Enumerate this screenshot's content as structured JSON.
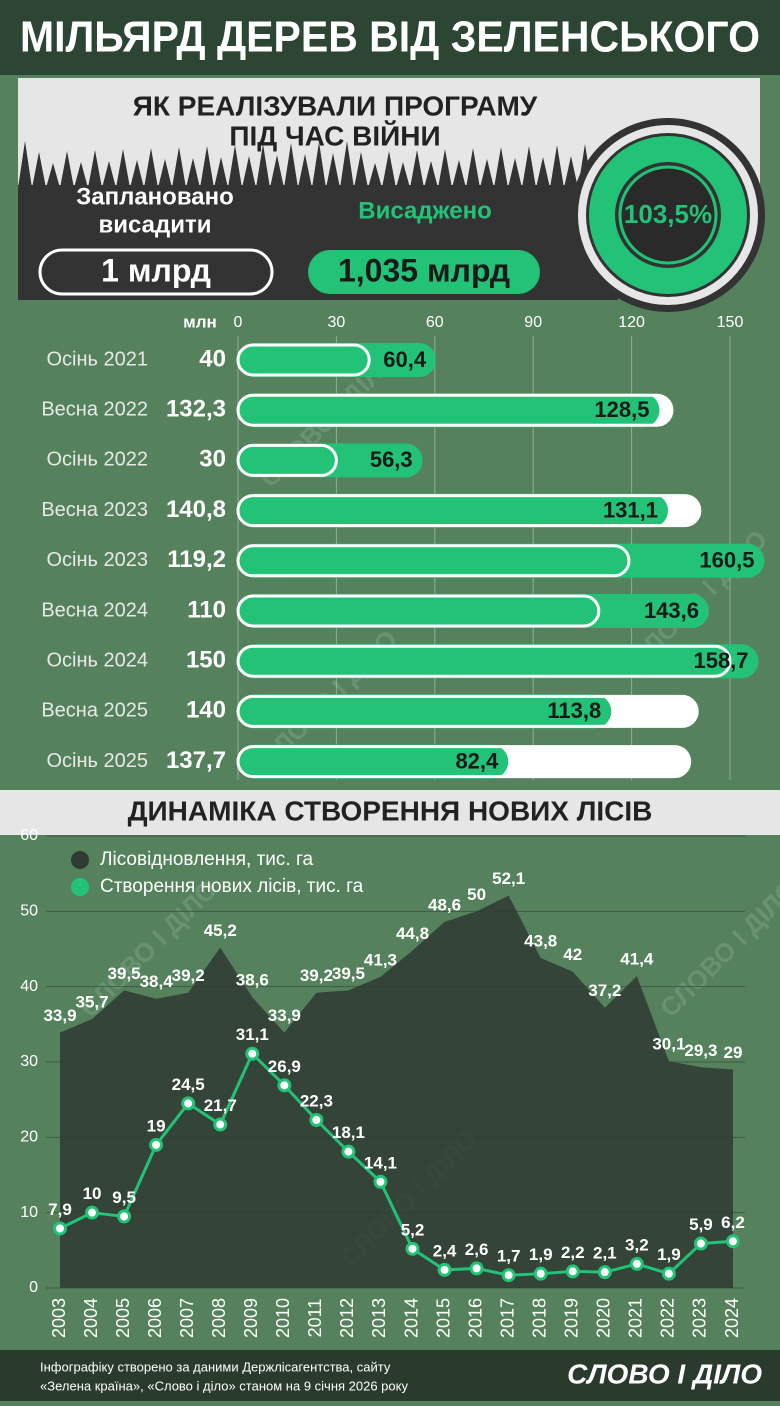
{
  "header": {
    "title": "МІЛЬЯРД ДЕРЕВ ВІД ЗЕЛЕНСЬКОГО"
  },
  "summary": {
    "subtitle": [
      "ЯК РЕАЛІЗУВАЛИ ПРОГРАМУ",
      "ПІД ЧАС ВІЙНИ"
    ],
    "planned_label": [
      "Заплановано",
      "висадити"
    ],
    "planned_value": "1 млрд",
    "planted_label": "Висаджено",
    "planted_value": "1,035 млрд",
    "percent": "103,5%"
  },
  "chart_data": [
    {
      "type": "bar",
      "orientation": "horizontal",
      "unit_label": "млн",
      "categories": [
        "Осінь 2021",
        "Весна 2022",
        "Осінь 2022",
        "Весна 2023",
        "Осінь 2023",
        "Весна 2024",
        "Осінь 2024",
        "Весна 2025",
        "Осінь 2025"
      ],
      "series": [
        {
          "color": "#ffffff",
          "values": [
            40,
            132.3,
            30,
            140.8,
            119.2,
            110,
            150,
            140,
            137.7
          ],
          "value_labels": [
            "40",
            "132,3",
            "30",
            "140,8",
            "119,2",
            "110",
            "150",
            "140",
            "137,7"
          ]
        },
        {
          "color": "#22c277",
          "values": [
            60.4,
            128.5,
            56.3,
            131.1,
            160.5,
            143.6,
            158.7,
            113.8,
            82.4
          ],
          "value_labels": [
            "60,4",
            "128,5",
            "56,3",
            "131,1",
            "160,5",
            "143,6",
            "158,7",
            "113,8",
            "82,4"
          ]
        }
      ],
      "xlim": [
        0,
        150
      ],
      "xticks": [
        0,
        30,
        60,
        90,
        120,
        150
      ],
      "grid": true
    },
    {
      "type": "line",
      "title": "ДИНАМІКА СТВОРЕННЯ НОВИХ ЛІСІВ",
      "categories": [
        "2003",
        "2004",
        "2005",
        "2006",
        "2007",
        "2008",
        "2009",
        "2010",
        "2011",
        "2012",
        "2013",
        "2014",
        "2015",
        "2016",
        "2017",
        "2018",
        "2019",
        "2020",
        "2021",
        "2022",
        "2023",
        "2024"
      ],
      "series": [
        {
          "name": "Лісовідновлення, тис. га",
          "color": "#2f3a31",
          "style": "area",
          "values": [
            33.9,
            35.7,
            39.5,
            38.4,
            39.2,
            45.2,
            38.6,
            33.9,
            39.2,
            39.5,
            41.3,
            44.8,
            48.6,
            50,
            52.1,
            43.8,
            42,
            37.2,
            41.4,
            30.1,
            29.3,
            29
          ],
          "value_labels": [
            "33,9",
            "35,7",
            "39,5",
            "38,4",
            "39,2",
            "45,2",
            "38,6",
            "33,9",
            "39,2",
            "39,5",
            "41,3",
            "44,8",
            "48,6",
            "50",
            "52,1",
            "43,8",
            "42",
            "37,2",
            "41,4",
            "30,1",
            "29,3",
            "29"
          ]
        },
        {
          "name": "Створення нових лісів, тис. га",
          "color": "#22c277",
          "style": "line",
          "values": [
            7.9,
            10,
            9.5,
            19,
            24.5,
            21.7,
            31.1,
            26.9,
            22.3,
            18.1,
            14.1,
            5.2,
            2.4,
            2.6,
            1.7,
            1.9,
            2.2,
            2.1,
            3.2,
            1.9,
            5.9,
            6.2
          ],
          "value_labels": [
            "7,9",
            "10",
            "9,5",
            "19",
            "24,5",
            "21,7",
            "31,1",
            "26,9",
            "22,3",
            "18,1",
            "14,1",
            "5,2",
            "2,4",
            "2,6",
            "1,7",
            "1,9",
            "2,2",
            "2,1",
            "3,2",
            "1,9",
            "5,9",
            "6,2"
          ]
        }
      ],
      "ylim": [
        0,
        60
      ],
      "yticks": [
        0,
        10,
        20,
        30,
        40,
        50,
        60
      ],
      "grid": true
    }
  ],
  "footer": {
    "note": [
      "Інфографіку створено за даними Держлісагентства, сайту",
      "«Зелена країна», «Слово і діло» станом на 9 січня 2026 року"
    ],
    "logo": "СЛОВО І ДІЛО",
    "watermark": "СЛОВО І ДІЛО"
  }
}
